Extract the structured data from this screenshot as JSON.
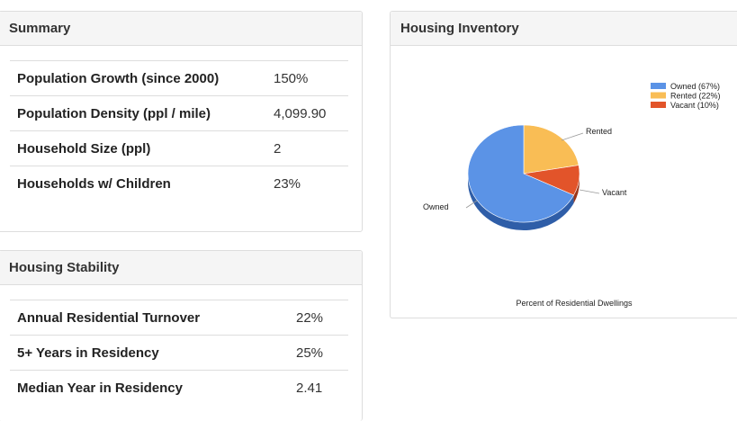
{
  "summary": {
    "title": "Summary",
    "rows": [
      {
        "label": "Population Growth (since 2000)",
        "value": "150%"
      },
      {
        "label": "Population Density (ppl / mile)",
        "value": "4,099.90"
      },
      {
        "label": "Household Size (ppl)",
        "value": "2"
      },
      {
        "label": "Households w/ Children",
        "value": "23%"
      }
    ]
  },
  "stability": {
    "title": "Housing Stability",
    "rows": [
      {
        "label": "Annual Residential Turnover",
        "value": "22%"
      },
      {
        "label": "5+ Years in Residency",
        "value": "25%"
      },
      {
        "label": "Median Year in Residency",
        "value": "2.41"
      }
    ]
  },
  "inventory": {
    "title": "Housing Inventory"
  },
  "chart_data": {
    "type": "pie",
    "title": "Percent of Residential Dwellings",
    "categories": [
      "Owned",
      "Rented",
      "Vacant"
    ],
    "values": [
      67,
      22,
      10
    ],
    "legend_labels": [
      "Owned (67%)",
      "Rented (22%)",
      "Vacant (10%)"
    ],
    "colors": [
      "#5b93e6",
      "#f9bd55",
      "#e2542a"
    ],
    "side_colors": [
      "#2f5ea8",
      "#b78a33",
      "#9c3518"
    ],
    "legend_position": "top-right",
    "three_d": true
  }
}
